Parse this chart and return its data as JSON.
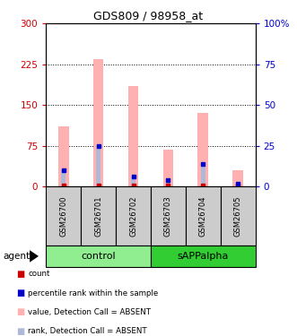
{
  "title": "GDS809 / 98958_at",
  "samples": [
    "GSM26700",
    "GSM26701",
    "GSM26702",
    "GSM26703",
    "GSM26704",
    "GSM26705"
  ],
  "groups": [
    {
      "name": "control",
      "color": "#90ee90"
    },
    {
      "name": "sAPPalpha",
      "color": "#32cd32"
    }
  ],
  "bar_values_pink": [
    110,
    235,
    185,
    68,
    135,
    30
  ],
  "bar_values_blue": [
    30,
    75,
    18,
    12,
    42,
    5
  ],
  "ylim_left": [
    0,
    300
  ],
  "ylim_right": [
    0,
    100
  ],
  "yticks_left": [
    0,
    75,
    150,
    225,
    300
  ],
  "yticks_right": [
    0,
    25,
    50,
    75,
    100
  ],
  "left_tick_labels": [
    "0",
    "75",
    "150",
    "225",
    "300"
  ],
  "right_tick_labels": [
    "0",
    "25",
    "50",
    "75",
    "100%"
  ],
  "left_color": "#cc0000",
  "right_color": "#0000cc",
  "bar_pink_color": "#ffb0b0",
  "bar_blue_color": "#b0b8d8",
  "dot_red_color": "#cc0000",
  "dot_blue_color": "#0000cc",
  "bg_color": "#ffffff",
  "sample_bg_color": "#cccccc",
  "legend_items": [
    {
      "label": "count",
      "color": "#cc0000"
    },
    {
      "label": "percentile rank within the sample",
      "color": "#0000cc"
    },
    {
      "label": "value, Detection Call = ABSENT",
      "color": "#ffb0b0"
    },
    {
      "label": "rank, Detection Call = ABSENT",
      "color": "#b0b8d8"
    }
  ]
}
